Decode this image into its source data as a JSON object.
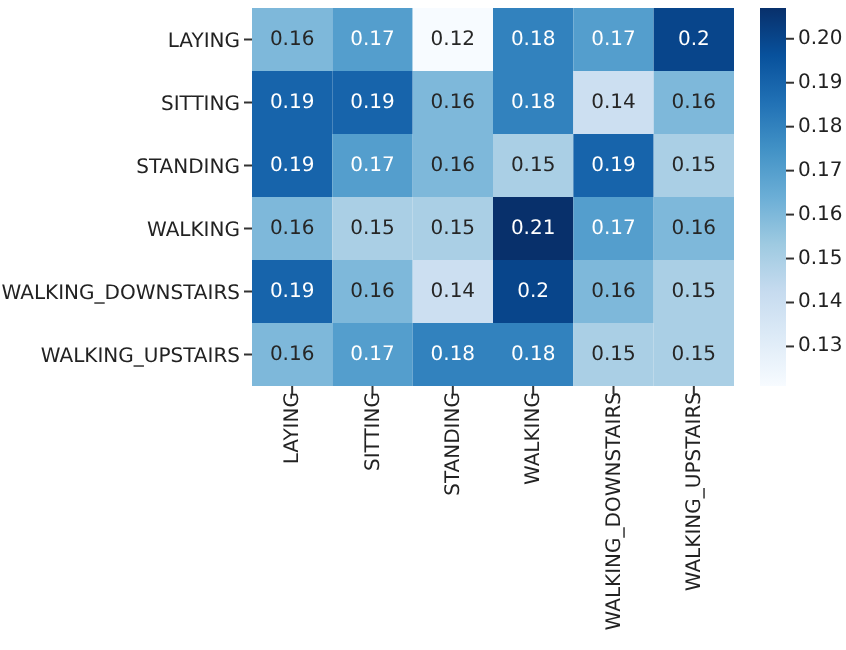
{
  "chart_data": {
    "type": "heatmap",
    "categories": [
      "LAYING",
      "SITTING",
      "STANDING",
      "WALKING",
      "WALKING_DOWNSTAIRS",
      "WALKING_UPSTAIRS"
    ],
    "y_categories": [
      "LAYING",
      "SITTING",
      "STANDING",
      "WALKING",
      "WALKING_DOWNSTAIRS",
      "WALKING_UPSTAIRS"
    ],
    "cells": [
      [
        0.16,
        0.17,
        0.12,
        0.18,
        0.17,
        0.2
      ],
      [
        0.19,
        0.19,
        0.16,
        0.18,
        0.14,
        0.16
      ],
      [
        0.19,
        0.17,
        0.16,
        0.15,
        0.19,
        0.15
      ],
      [
        0.16,
        0.15,
        0.15,
        0.21,
        0.17,
        0.16
      ],
      [
        0.19,
        0.16,
        0.14,
        0.2,
        0.16,
        0.15
      ],
      [
        0.16,
        0.17,
        0.18,
        0.18,
        0.15,
        0.15
      ]
    ],
    "data_labels": true,
    "clim": [
      0.121,
      0.207
    ],
    "cticks": [
      0.13,
      0.14,
      0.15,
      0.16,
      0.17,
      0.18,
      0.19,
      {
        "value": 0.2,
        "label": "0.20"
      }
    ]
  }
}
